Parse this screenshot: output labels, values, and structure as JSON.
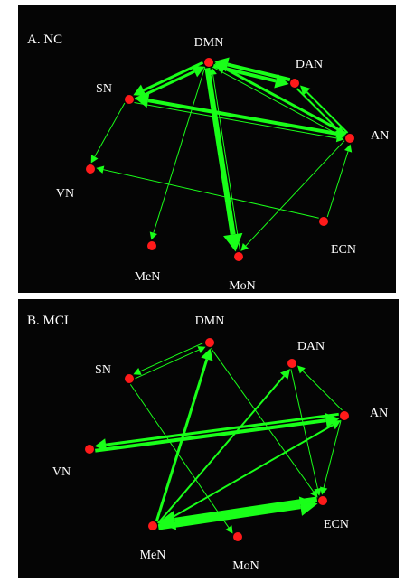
{
  "colors": {
    "node": "#ff1a1a",
    "edge": "#19ff19",
    "background": "#050505",
    "text": "#ffffff"
  },
  "panels": [
    {
      "title": "A. NC",
      "nodes": [
        {
          "id": "DMN",
          "label": "DMN"
        },
        {
          "id": "DAN",
          "label": "DAN"
        },
        {
          "id": "SN",
          "label": "SN"
        },
        {
          "id": "AN",
          "label": "AN"
        },
        {
          "id": "VN",
          "label": "VN"
        },
        {
          "id": "ECN",
          "label": "ECN"
        },
        {
          "id": "MeN",
          "label": "MeN"
        },
        {
          "id": "MoN",
          "label": "MoN"
        }
      ],
      "edges": [
        {
          "from": "DMN",
          "to": "SN",
          "weight": 3
        },
        {
          "from": "SN",
          "to": "DMN",
          "weight": 3
        },
        {
          "from": "DMN",
          "to": "DAN",
          "weight": 4
        },
        {
          "from": "DAN",
          "to": "DMN",
          "weight": 4
        },
        {
          "from": "AN",
          "to": "SN",
          "weight": 4
        },
        {
          "from": "SN",
          "to": "AN",
          "weight": 1
        },
        {
          "from": "AN",
          "to": "DMN",
          "weight": 3
        },
        {
          "from": "DMN",
          "to": "AN",
          "weight": 1
        },
        {
          "from": "DAN",
          "to": "AN",
          "weight": 2
        },
        {
          "from": "AN",
          "to": "DAN",
          "weight": 2
        },
        {
          "from": "DMN",
          "to": "MoN",
          "weight": 6
        },
        {
          "from": "MoN",
          "to": "DMN",
          "weight": 1
        },
        {
          "from": "SN",
          "to": "VN",
          "weight": 1
        },
        {
          "from": "ECN",
          "to": "VN",
          "weight": 1
        },
        {
          "from": "ECN",
          "to": "AN",
          "weight": 1
        },
        {
          "from": "AN",
          "to": "MoN",
          "weight": 1
        },
        {
          "from": "DMN",
          "to": "MeN",
          "weight": 1
        }
      ]
    },
    {
      "title": "B. MCI",
      "nodes": [
        {
          "id": "DMN",
          "label": "DMN"
        },
        {
          "id": "DAN",
          "label": "DAN"
        },
        {
          "id": "SN",
          "label": "SN"
        },
        {
          "id": "AN",
          "label": "AN"
        },
        {
          "id": "VN",
          "label": "VN"
        },
        {
          "id": "ECN",
          "label": "ECN"
        },
        {
          "id": "MeN",
          "label": "MeN"
        },
        {
          "id": "MoN",
          "label": "MoN"
        }
      ],
      "edges": [
        {
          "from": "DMN",
          "to": "SN",
          "weight": 1
        },
        {
          "from": "SN",
          "to": "DMN",
          "weight": 1
        },
        {
          "from": "MeN",
          "to": "DMN",
          "weight": 3
        },
        {
          "from": "DMN",
          "to": "ECN",
          "weight": 1
        },
        {
          "from": "VN",
          "to": "AN",
          "weight": 4
        },
        {
          "from": "AN",
          "to": "VN",
          "weight": 3
        },
        {
          "from": "MeN",
          "to": "DAN",
          "weight": 2
        },
        {
          "from": "MeN",
          "to": "AN",
          "weight": 2
        },
        {
          "from": "MeN",
          "to": "ECN",
          "weight": 6
        },
        {
          "from": "ECN",
          "to": "MeN",
          "weight": 6
        },
        {
          "from": "AN",
          "to": "DAN",
          "weight": 1
        },
        {
          "from": "AN",
          "to": "ECN",
          "weight": 1
        },
        {
          "from": "DAN",
          "to": "ECN",
          "weight": 1
        },
        {
          "from": "SN",
          "to": "MoN",
          "weight": 1
        }
      ]
    }
  ]
}
